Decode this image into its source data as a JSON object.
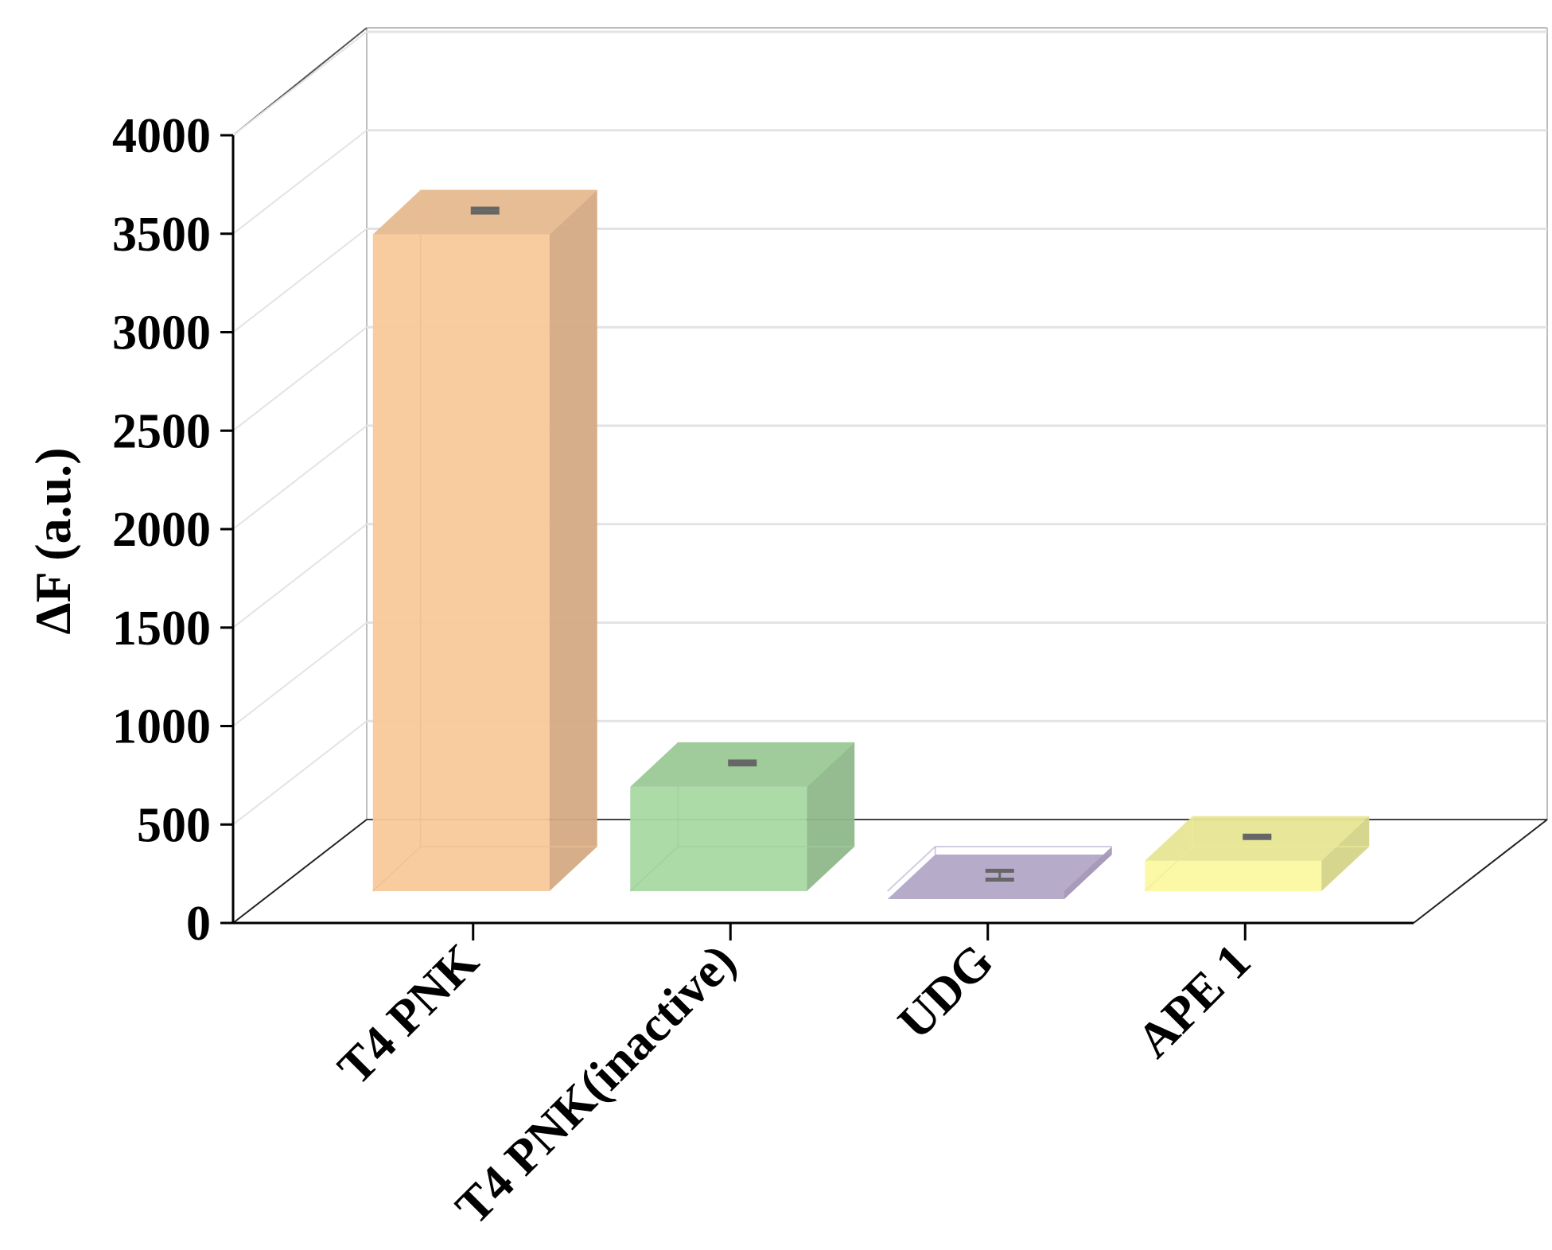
{
  "chart_data": {
    "type": "bar",
    "style": "3d",
    "categories": [
      "T4 PNK",
      "T4 PNK(inactive)",
      "UDG",
      "APE 1"
    ],
    "values": [
      3860,
      1055,
      485,
      680
    ],
    "errors": [
      20,
      15,
      45,
      10
    ],
    "title": "",
    "xlabel": "",
    "ylabel": "ΔF (a.u.)",
    "ylim": [
      0,
      4000
    ],
    "yticks": [
      0,
      500,
      1000,
      1500,
      2000,
      2500,
      3000,
      3500,
      4000
    ],
    "grid": true,
    "legend": "none",
    "colors": [
      "#F9C99B",
      "#A8D9A3",
      "#C3B4D8",
      "#FBF9A0"
    ]
  }
}
